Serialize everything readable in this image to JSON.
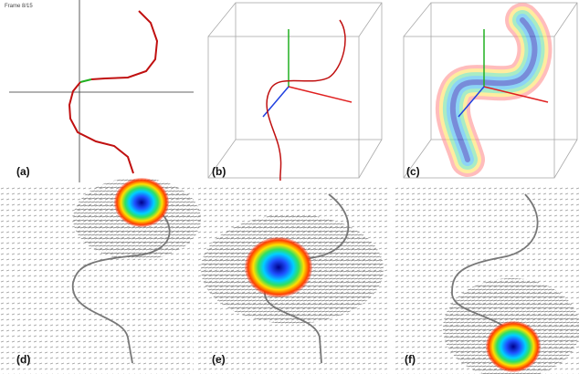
{
  "frame_label": "Frame 8/15",
  "panels": [
    {
      "label": "(a)"
    },
    {
      "label": "(b)"
    },
    {
      "label": "(c)"
    },
    {
      "label": "(d)"
    },
    {
      "label": "(e)"
    },
    {
      "label": "(f)"
    }
  ]
}
